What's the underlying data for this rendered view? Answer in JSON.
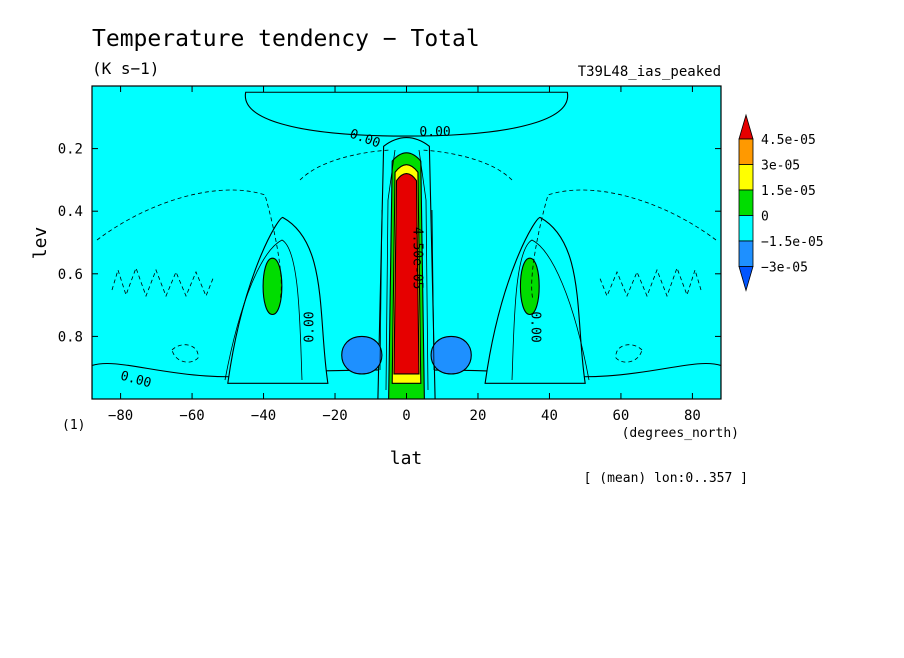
{
  "chart_data": {
    "type": "heatmap",
    "title": "Temperature tendency − Total",
    "units": "(K s−1)",
    "experiment": "T39L48_ias_peaked",
    "xlabel": "lat",
    "xunits": "(degrees_north)",
    "ylabel": "lev",
    "yunits": "(1)",
    "footer": "[ (mean) lon:0..357 ]",
    "xlim": [
      -88,
      88
    ],
    "ylim": [
      0.0,
      1.0
    ],
    "y_inverted": true,
    "x_ticks": [
      -80,
      -60,
      -40,
      -20,
      0,
      20,
      40,
      60,
      80
    ],
    "x_tick_labels": [
      "−80",
      "−60",
      "−40",
      "−20",
      "0",
      "20",
      "40",
      "60",
      "80"
    ],
    "y_ticks": [
      0.2,
      0.4,
      0.6,
      0.8
    ],
    "y_tick_labels": [
      "0.2",
      "0.4",
      "0.6",
      "0.8"
    ],
    "colorbar": {
      "levels": [
        "4.5e-05",
        "3e-05",
        "1.5e-05",
        "0",
        "−1.5e-05",
        "−3e-05"
      ],
      "colors": [
        "#e60000",
        "#ff9900",
        "#ffff00",
        "#00dd00",
        "#00ffff",
        "#1e90ff",
        "#0055ff"
      ]
    },
    "contour_labels": [
      {
        "text": "0.00",
        "lat": -12,
        "lev": 0.18,
        "rot": 20
      },
      {
        "text": "0.00",
        "lat": 8,
        "lev": 0.16,
        "rot": 0
      },
      {
        "text": "0.00",
        "lat": -26,
        "lev": 0.77,
        "rot": -90
      },
      {
        "text": "0.00",
        "lat": 35,
        "lev": 0.77,
        "rot": 90
      },
      {
        "text": "0.00",
        "lat": -76,
        "lev": 0.95,
        "rot": 15
      },
      {
        "text": "4.50e-05",
        "lat": 2,
        "lev": 0.55,
        "rot": 90
      }
    ],
    "regions": [
      {
        "level": "0",
        "lat": [
          -45,
          45
        ],
        "lev": [
          0.02,
          0.16
        ],
        "shape": "top-cap"
      },
      {
        "level": "0",
        "lat": [
          -88,
          88
        ],
        "lev": [
          0.88,
          1.0
        ],
        "shape": "bottom-band"
      },
      {
        "level": "0",
        "lat": [
          -50,
          -22
        ],
        "lev": [
          0.42,
          0.95
        ],
        "shape": "plume"
      },
      {
        "level": "0",
        "lat": [
          22,
          50
        ],
        "lev": [
          0.42,
          0.95
        ],
        "shape": "plume"
      },
      {
        "level": "0",
        "lat": [
          -8,
          8
        ],
        "lev": [
          0.15,
          1.0
        ],
        "shape": "column"
      },
      {
        "level": "1.5e-05",
        "lat": [
          -41,
          -34
        ],
        "lev": [
          0.55,
          0.73
        ],
        "shape": "lobe"
      },
      {
        "level": "1.5e-05",
        "lat": [
          31,
          38
        ],
        "lev": [
          0.55,
          0.73
        ],
        "shape": "lobe"
      },
      {
        "level": "1.5e-05",
        "lat": [
          -5,
          5
        ],
        "lev": [
          0.2,
          1.0
        ],
        "shape": "column"
      },
      {
        "level": "3e-05",
        "lat": [
          -4,
          4
        ],
        "lev": [
          0.24,
          0.95
        ],
        "shape": "column"
      },
      {
        "level": "4.5e-05",
        "lat": [
          -3.5,
          3.5
        ],
        "lev": [
          0.27,
          0.92
        ],
        "shape": "column"
      },
      {
        "level": "−1.5e-05",
        "lat": [
          -20,
          -5
        ],
        "lev": [
          0.8,
          0.92
        ],
        "shape": "blob"
      },
      {
        "level": "−1.5e-05",
        "lat": [
          5,
          20
        ],
        "lev": [
          0.8,
          0.92
        ],
        "shape": "blob"
      }
    ]
  }
}
